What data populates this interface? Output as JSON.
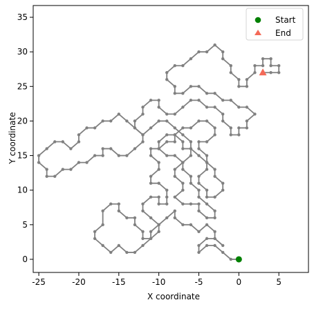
{
  "chart_data": {
    "type": "line",
    "title": "",
    "xlabel": "X coordinate",
    "ylabel": "Y coordinate",
    "xlim": [
      -25.7,
      8.7
    ],
    "ylim": [
      -1.9,
      36.7
    ],
    "x_ticks": [
      -25,
      -20,
      -15,
      -10,
      -5,
      0,
      5
    ],
    "y_ticks": [
      0,
      5,
      10,
      15,
      20,
      25,
      30,
      35
    ],
    "grid": false,
    "legend_position": "top-right",
    "path_color": "#808080",
    "series": [
      {
        "type": "line",
        "color": "#808080",
        "marker": "small-dot",
        "points": [
          [
            0,
            0
          ],
          [
            -1,
            0
          ],
          [
            -2,
            1
          ],
          [
            -3,
            2
          ],
          [
            -4,
            2
          ],
          [
            -5,
            1
          ],
          [
            -5,
            2
          ],
          [
            -4,
            3
          ],
          [
            -3,
            3
          ],
          [
            -2,
            2
          ],
          [
            -3,
            3
          ],
          [
            -3,
            4
          ],
          [
            -4,
            5
          ],
          [
            -5,
            4
          ],
          [
            -6,
            5
          ],
          [
            -7,
            5
          ],
          [
            -8,
            6
          ],
          [
            -8,
            7
          ],
          [
            -9,
            6
          ],
          [
            -10,
            5
          ],
          [
            -11,
            4
          ],
          [
            -11,
            3
          ],
          [
            -12,
            2
          ],
          [
            -13,
            1
          ],
          [
            -14,
            1
          ],
          [
            -15,
            2
          ],
          [
            -16,
            1
          ],
          [
            -17,
            2
          ],
          [
            -18,
            3
          ],
          [
            -18,
            4
          ],
          [
            -17,
            5
          ],
          [
            -17,
            7
          ],
          [
            -16,
            8
          ],
          [
            -15,
            8
          ],
          [
            -15,
            7
          ],
          [
            -14,
            6
          ],
          [
            -13,
            6
          ],
          [
            -13,
            5
          ],
          [
            -12,
            4
          ],
          [
            -12,
            3
          ],
          [
            -11,
            3
          ],
          [
            -10,
            4
          ],
          [
            -10,
            5
          ],
          [
            -11,
            6
          ],
          [
            -12,
            7
          ],
          [
            -12,
            8
          ],
          [
            -11,
            9
          ],
          [
            -10,
            9
          ],
          [
            -10,
            8
          ],
          [
            -9,
            8
          ],
          [
            -9,
            9
          ],
          [
            -9,
            10
          ],
          [
            -10,
            11
          ],
          [
            -11,
            11
          ],
          [
            -11,
            12
          ],
          [
            -10,
            13
          ],
          [
            -10,
            14
          ],
          [
            -11,
            15
          ],
          [
            -11,
            16
          ],
          [
            -10,
            16
          ],
          [
            -10,
            17
          ],
          [
            -9,
            18
          ],
          [
            -8,
            18
          ],
          [
            -7,
            17
          ],
          [
            -7,
            16
          ],
          [
            -6,
            16
          ],
          [
            -6,
            15
          ],
          [
            -7,
            14
          ],
          [
            -8,
            13
          ],
          [
            -8,
            12
          ],
          [
            -7,
            11
          ],
          [
            -7,
            10
          ],
          [
            -8,
            9
          ],
          [
            -7,
            8
          ],
          [
            -6,
            8
          ],
          [
            -5,
            8
          ],
          [
            -5,
            7
          ],
          [
            -4,
            6
          ],
          [
            -3,
            6
          ],
          [
            -3,
            7
          ],
          [
            -4,
            8
          ],
          [
            -5,
            9
          ],
          [
            -5,
            10
          ],
          [
            -6,
            11
          ],
          [
            -6,
            12
          ],
          [
            -7,
            13
          ],
          [
            -7,
            14
          ],
          [
            -8,
            15
          ],
          [
            -9,
            15
          ],
          [
            -10,
            16
          ],
          [
            -9,
            17
          ],
          [
            -8,
            17
          ],
          [
            -8,
            18
          ],
          [
            -7,
            19
          ],
          [
            -6,
            19
          ],
          [
            -5,
            20
          ],
          [
            -4,
            20
          ],
          [
            -3,
            19
          ],
          [
            -3,
            18
          ],
          [
            -4,
            17
          ],
          [
            -5,
            17
          ],
          [
            -5,
            16
          ],
          [
            -4,
            15
          ],
          [
            -4,
            14
          ],
          [
            -3,
            13
          ],
          [
            -3,
            12
          ],
          [
            -2,
            11
          ],
          [
            -2,
            10
          ],
          [
            -3,
            9
          ],
          [
            -4,
            9
          ],
          [
            -4,
            10
          ],
          [
            -5,
            11
          ],
          [
            -5,
            12
          ],
          [
            -4,
            13
          ],
          [
            -4,
            14
          ],
          [
            -5,
            15
          ],
          [
            -6,
            16
          ],
          [
            -6,
            17
          ],
          [
            -7,
            18
          ],
          [
            -8,
            19
          ],
          [
            -9,
            20
          ],
          [
            -10,
            20
          ],
          [
            -11,
            19
          ],
          [
            -12,
            18
          ],
          [
            -13,
            19
          ],
          [
            -14,
            20
          ],
          [
            -15,
            21
          ],
          [
            -16,
            20
          ],
          [
            -17,
            20
          ],
          [
            -18,
            19
          ],
          [
            -19,
            19
          ],
          [
            -20,
            18
          ],
          [
            -20,
            17
          ],
          [
            -21,
            16
          ],
          [
            -22,
            17
          ],
          [
            -23,
            17
          ],
          [
            -24,
            16
          ],
          [
            -25,
            15
          ],
          [
            -25,
            14
          ],
          [
            -24,
            13
          ],
          [
            -24,
            12
          ],
          [
            -23,
            12
          ],
          [
            -22,
            13
          ],
          [
            -21,
            13
          ],
          [
            -20,
            14
          ],
          [
            -19,
            14
          ],
          [
            -18,
            15
          ],
          [
            -17,
            15
          ],
          [
            -17,
            16
          ],
          [
            -16,
            16
          ],
          [
            -15,
            15
          ],
          [
            -14,
            15
          ],
          [
            -13,
            16
          ],
          [
            -12,
            17
          ],
          [
            -12,
            18
          ],
          [
            -13,
            19
          ],
          [
            -13,
            20
          ],
          [
            -12,
            21
          ],
          [
            -12,
            22
          ],
          [
            -11,
            23
          ],
          [
            -10,
            23
          ],
          [
            -10,
            22
          ],
          [
            -9,
            21
          ],
          [
            -8,
            21
          ],
          [
            -7,
            22
          ],
          [
            -6,
            23
          ],
          [
            -5,
            23
          ],
          [
            -4,
            22
          ],
          [
            -3,
            22
          ],
          [
            -2,
            21
          ],
          [
            -2,
            20
          ],
          [
            -1,
            19
          ],
          [
            -1,
            18
          ],
          [
            0,
            18
          ],
          [
            0,
            19
          ],
          [
            1,
            19
          ],
          [
            1,
            20
          ],
          [
            2,
            21
          ],
          [
            1,
            22
          ],
          [
            0,
            22
          ],
          [
            -1,
            23
          ],
          [
            -2,
            23
          ],
          [
            -3,
            24
          ],
          [
            -4,
            24
          ],
          [
            -5,
            25
          ],
          [
            -6,
            25
          ],
          [
            -7,
            24
          ],
          [
            -8,
            24
          ],
          [
            -8,
            25
          ],
          [
            -9,
            26
          ],
          [
            -9,
            27
          ],
          [
            -8,
            28
          ],
          [
            -7,
            28
          ],
          [
            -6,
            29
          ],
          [
            -5,
            30
          ],
          [
            -4,
            30
          ],
          [
            -3,
            31
          ],
          [
            -2,
            30
          ],
          [
            -2,
            29
          ],
          [
            -1,
            28
          ],
          [
            -1,
            27
          ],
          [
            0,
            26
          ],
          [
            0,
            25
          ],
          [
            1,
            25
          ],
          [
            1,
            26
          ],
          [
            2,
            27
          ],
          [
            2,
            28
          ],
          [
            3,
            28
          ],
          [
            3,
            29
          ],
          [
            4,
            29
          ],
          [
            4,
            28
          ],
          [
            5,
            28
          ],
          [
            5,
            27
          ],
          [
            4,
            27
          ],
          [
            3,
            27
          ]
        ]
      }
    ],
    "markers": [
      {
        "label": "Start",
        "point": [
          0,
          0
        ],
        "shape": "circle",
        "color": "#008000"
      },
      {
        "label": "End",
        "point": [
          3,
          27
        ],
        "shape": "triangle",
        "color": "#f46a58"
      }
    ]
  }
}
